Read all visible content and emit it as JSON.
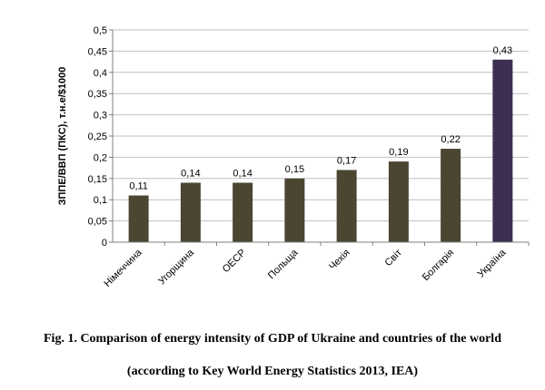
{
  "chart_data": {
    "type": "bar",
    "categories": [
      "Німеччина",
      "Угорщина",
      "OECP",
      "Польща",
      "Чехія",
      "Світ",
      "Болгарія",
      "Україна"
    ],
    "values": [
      0.11,
      0.14,
      0.14,
      0.15,
      0.17,
      0.19,
      0.22,
      0.43
    ],
    "data_labels": [
      "0,11",
      "0,14",
      "0,14",
      "0,15",
      "0,17",
      "0,19",
      "0,22",
      "0,43"
    ],
    "yticks": [
      "0",
      "0,05",
      "0,1",
      "0,15",
      "0,2",
      "0,25",
      "0,3",
      "0,35",
      "0,4",
      "0,45",
      "0,5"
    ],
    "ylim": [
      0,
      0.5
    ],
    "xlabel": "",
    "ylabel": "ЗППЕ/ВВП (ПКС), т.н.е/$1000",
    "grid": true,
    "colors": {
      "default": "#4a4632",
      "highlight": "#3c2f50",
      "grid": "#bfbfbf",
      "axis": "#808080"
    },
    "highlight_index": 7
  },
  "caption": {
    "line1": "Fig. 1. Comparison of energy intensity of GDP of Ukraine and countries of the world",
    "line2": "(according to Key World Energy Statistics 2013, IEA)"
  }
}
